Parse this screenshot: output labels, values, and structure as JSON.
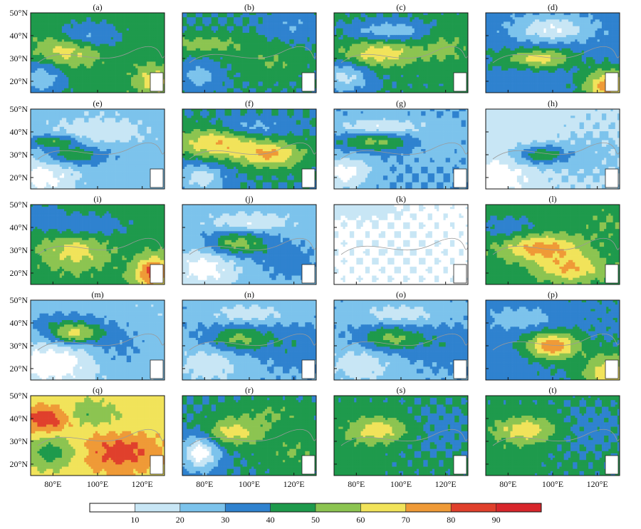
{
  "chart_data": {
    "type": "heatmap",
    "description_free": true,
    "panels": [
      "(a)",
      "(b)",
      "(c)",
      "(d)",
      "(e)",
      "(f)",
      "(g)",
      "(h)",
      "(i)",
      "(j)",
      "(k)",
      "(l)",
      "(m)",
      "(n)",
      "(o)",
      "(p)",
      "(q)",
      "(r)",
      "(s)",
      "(t)"
    ],
    "lon_range": [
      70,
      130
    ],
    "lat_range": [
      15,
      50
    ],
    "y_ticks": [
      {
        "value": 20,
        "label": "20°N"
      },
      {
        "value": 30,
        "label": "30°N"
      },
      {
        "value": 40,
        "label": "40°N"
      },
      {
        "value": 50,
        "label": "50°N"
      }
    ],
    "x_ticks": [
      {
        "value": 80,
        "label": "80°E"
      },
      {
        "value": 100,
        "label": "100°E"
      },
      {
        "value": 120,
        "label": "120°E"
      }
    ],
    "colorbar": {
      "levels": [
        10,
        20,
        30,
        40,
        50,
        60,
        70,
        80,
        90
      ],
      "labels": [
        "10",
        "20",
        "30",
        "40",
        "50",
        "60",
        "70",
        "80",
        "90"
      ],
      "colors": [
        "#ffffff",
        "#c8e6f5",
        "#7cc3ec",
        "#2f82cf",
        "#1e9a4c",
        "#8cc451",
        "#f1e35a",
        "#ef9a37",
        "#e0402c",
        "#d8262b"
      ]
    },
    "panel_fields": [
      {
        "base": 45,
        "blobs": [
          [
            85,
            33,
            10,
            5,
            22
          ],
          [
            95,
            40,
            10,
            4,
            -18
          ],
          [
            75,
            22,
            8,
            6,
            -22
          ],
          [
            125,
            20,
            6,
            5,
            20
          ]
        ]
      },
      {
        "base": 40,
        "blobs": [
          [
            80,
            36,
            14,
            3,
            15
          ],
          [
            110,
            28,
            10,
            5,
            10
          ],
          [
            120,
            44,
            8,
            4,
            -10
          ],
          [
            78,
            22,
            6,
            4,
            -15
          ]
        ]
      },
      {
        "base": 42,
        "blobs": [
          [
            90,
            32,
            12,
            4,
            25
          ],
          [
            95,
            42,
            12,
            3,
            -20
          ],
          [
            75,
            22,
            8,
            5,
            -25
          ],
          [
            120,
            35,
            8,
            6,
            10
          ]
        ]
      },
      {
        "base": 35,
        "blobs": [
          [
            95,
            30,
            10,
            3,
            30
          ],
          [
            100,
            43,
            12,
            4,
            -25
          ],
          [
            125,
            18,
            8,
            5,
            40
          ],
          [
            75,
            30,
            6,
            5,
            5
          ]
        ]
      },
      {
        "base": 25,
        "blobs": [
          [
            90,
            30,
            10,
            3,
            25
          ],
          [
            100,
            40,
            15,
            5,
            -12
          ],
          [
            75,
            20,
            10,
            6,
            -20
          ],
          [
            80,
            36,
            8,
            2,
            25
          ]
        ]
      },
      {
        "base": 40,
        "blobs": [
          [
            85,
            35,
            12,
            5,
            30
          ],
          [
            110,
            30,
            10,
            4,
            30
          ],
          [
            100,
            42,
            12,
            3,
            -15
          ],
          [
            78,
            20,
            8,
            5,
            -25
          ]
        ]
      },
      {
        "base": 30,
        "blobs": [
          [
            88,
            36,
            12,
            3,
            25
          ],
          [
            90,
            42,
            14,
            3,
            -20
          ],
          [
            75,
            22,
            8,
            5,
            -25
          ],
          [
            115,
            35,
            10,
            6,
            -5
          ]
        ]
      },
      {
        "base": 18,
        "blobs": [
          [
            95,
            30,
            8,
            3,
            30
          ],
          [
            85,
            40,
            15,
            6,
            -5
          ],
          [
            75,
            20,
            10,
            6,
            -15
          ],
          [
            115,
            30,
            12,
            8,
            5
          ]
        ]
      },
      {
        "base": 45,
        "blobs": [
          [
            90,
            30,
            10,
            6,
            20
          ],
          [
            125,
            20,
            6,
            5,
            40
          ],
          [
            95,
            40,
            12,
            4,
            -15
          ],
          [
            75,
            45,
            8,
            4,
            -10
          ]
        ]
      },
      {
        "base": 25,
        "blobs": [
          [
            95,
            33,
            10,
            4,
            30
          ],
          [
            80,
            22,
            10,
            6,
            -20
          ],
          [
            100,
            42,
            12,
            3,
            -15
          ],
          [
            118,
            25,
            10,
            6,
            10
          ]
        ]
      },
      {
        "base": 8,
        "blobs": [
          [
            80,
            48,
            12,
            3,
            8
          ],
          [
            100,
            30,
            15,
            10,
            2
          ]
        ]
      },
      {
        "base": 45,
        "blobs": [
          [
            95,
            31,
            12,
            4,
            30
          ],
          [
            108,
            22,
            10,
            4,
            25
          ],
          [
            80,
            40,
            10,
            4,
            -10
          ],
          [
            125,
            42,
            8,
            5,
            5
          ]
        ]
      },
      {
        "base": 22,
        "blobs": [
          [
            90,
            35,
            8,
            3,
            35
          ],
          [
            85,
            40,
            12,
            4,
            15
          ],
          [
            80,
            22,
            12,
            6,
            -20
          ],
          [
            110,
            30,
            10,
            8,
            10
          ]
        ]
      },
      {
        "base": 28,
        "blobs": [
          [
            95,
            33,
            10,
            4,
            25
          ],
          [
            82,
            22,
            10,
            6,
            -15
          ],
          [
            100,
            44,
            12,
            3,
            -15
          ],
          [
            120,
            30,
            10,
            6,
            10
          ]
        ]
      },
      {
        "base": 28,
        "blobs": [
          [
            95,
            33,
            10,
            4,
            25
          ],
          [
            82,
            22,
            10,
            6,
            -15
          ],
          [
            100,
            44,
            12,
            3,
            -15
          ],
          [
            120,
            30,
            10,
            6,
            10
          ]
        ]
      },
      {
        "base": 38,
        "blobs": [
          [
            100,
            30,
            8,
            4,
            40
          ],
          [
            85,
            42,
            12,
            4,
            -15
          ],
          [
            125,
            18,
            8,
            6,
            30
          ],
          [
            80,
            24,
            8,
            6,
            -5
          ]
        ]
      },
      {
        "base": 65,
        "blobs": [
          [
            110,
            25,
            12,
            6,
            20
          ],
          [
            78,
            40,
            8,
            4,
            25
          ],
          [
            95,
            42,
            10,
            4,
            -15
          ],
          [
            80,
            25,
            8,
            5,
            -20
          ]
        ]
      },
      {
        "base": 40,
        "blobs": [
          [
            92,
            34,
            10,
            4,
            25
          ],
          [
            78,
            25,
            6,
            6,
            -35
          ],
          [
            110,
            42,
            12,
            4,
            10
          ],
          [
            120,
            25,
            10,
            6,
            10
          ]
        ]
      },
      {
        "base": 42,
        "blobs": [
          [
            90,
            35,
            10,
            4,
            25
          ],
          [
            115,
            35,
            12,
            8,
            -5
          ],
          [
            78,
            22,
            8,
            5,
            5
          ]
        ]
      },
      {
        "base": 42,
        "blobs": [
          [
            88,
            35,
            10,
            4,
            25
          ],
          [
            115,
            35,
            12,
            8,
            -5
          ],
          [
            78,
            22,
            8,
            5,
            5
          ]
        ]
      }
    ]
  }
}
